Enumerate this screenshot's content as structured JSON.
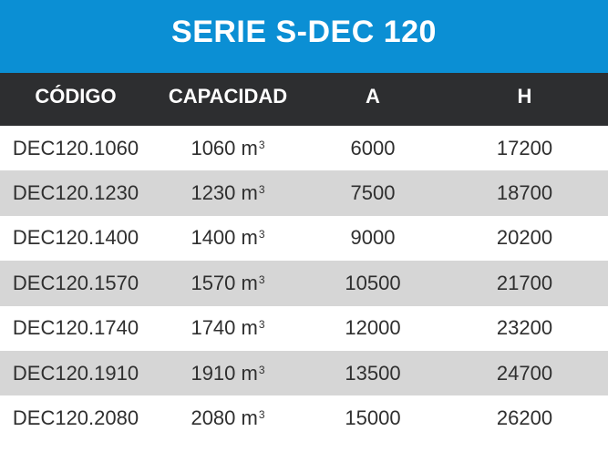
{
  "title": "SERIE S-DEC 120",
  "colors": {
    "title_bg": "#0b8fd4",
    "header_bg": "#2d2e30",
    "alt_row_bg": "#d6d6d6",
    "text": "#2f2f2f"
  },
  "headers": [
    "CÓDIGO",
    "CAPACIDAD",
    "A",
    "H"
  ],
  "capacity_unit": "m",
  "capacity_unit_exp": "3",
  "rows": [
    {
      "codigo": "DEC120.1060",
      "capacidad": "1060",
      "a": "6000",
      "h": "17200"
    },
    {
      "codigo": "DEC120.1230",
      "capacidad": "1230",
      "a": "7500",
      "h": "18700"
    },
    {
      "codigo": "DEC120.1400",
      "capacidad": "1400",
      "a": "9000",
      "h": "20200"
    },
    {
      "codigo": "DEC120.1570",
      "capacidad": "1570",
      "a": "10500",
      "h": "21700"
    },
    {
      "codigo": "DEC120.1740",
      "capacidad": "1740",
      "a": "12000",
      "h": "23200"
    },
    {
      "codigo": "DEC120.1910",
      "capacidad": "1910",
      "a": "13500",
      "h": "24700"
    },
    {
      "codigo": "DEC120.2080",
      "capacidad": "2080",
      "a": "15000",
      "h": "26200"
    }
  ]
}
